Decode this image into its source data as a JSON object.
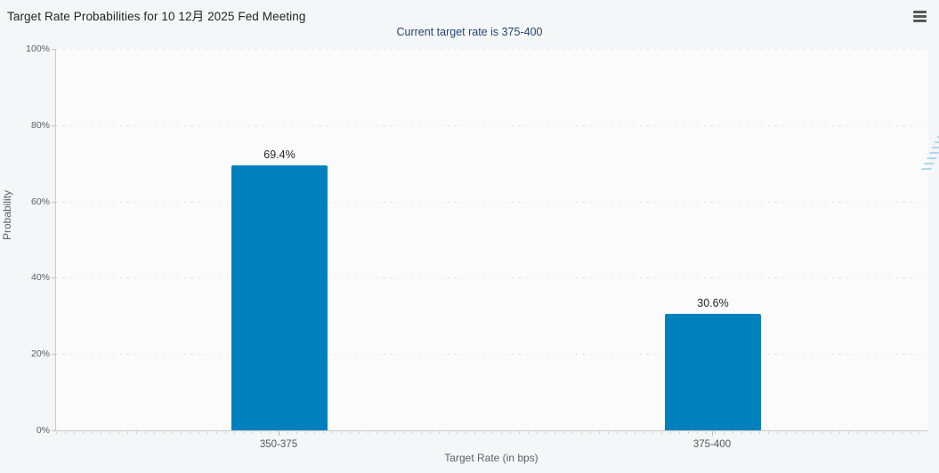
{
  "header": {
    "menu_tooltip": "Chart context menu"
  },
  "watermark": {
    "letter": "Q"
  },
  "colors": {
    "bar": "#0081bd",
    "subtitle": "#23457c",
    "title": "#232527",
    "background": "#f5f6f7"
  },
  "chart_data": {
    "type": "bar",
    "title": "Target Rate Probabilities for 10 12月 2025 Fed Meeting",
    "subtitle": "Current target rate is 375-400",
    "categories": [
      "350-375",
      "375-400"
    ],
    "values": [
      69.4,
      30.6
    ],
    "value_labels": [
      "69.4%",
      "30.6%"
    ],
    "xlabel": "Target Rate (in bps)",
    "ylabel": "Probability",
    "ylim": [
      0,
      100
    ],
    "yticks": [
      0,
      20,
      40,
      60,
      80,
      100
    ],
    "ytick_labels": [
      "0%",
      "20%",
      "40%",
      "60%",
      "80%",
      "100%"
    ],
    "grid": "dotted horizontal gridlines at each 20%",
    "legend": "none",
    "bar_color": "#0081bd"
  }
}
